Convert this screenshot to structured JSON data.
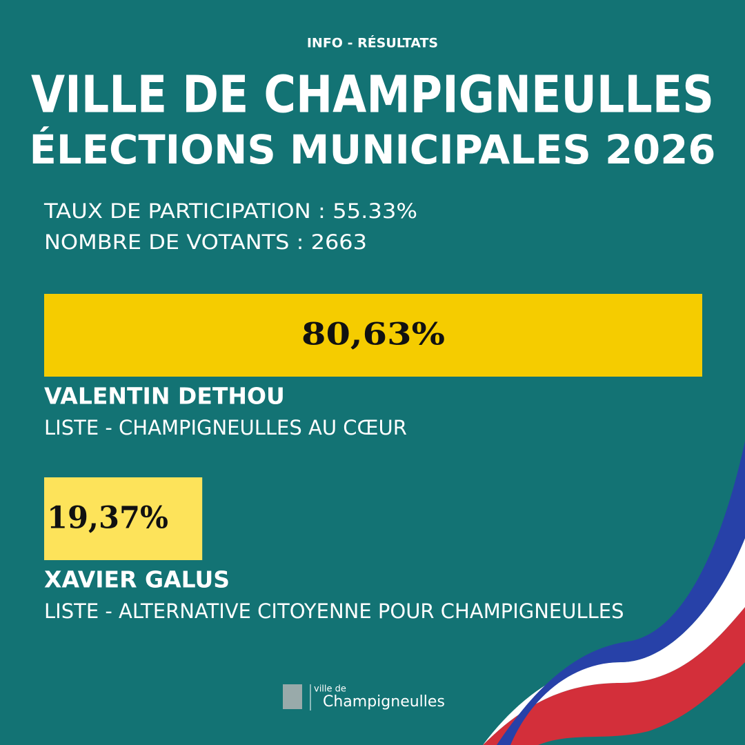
{
  "header": {
    "kicker": "INFO - RÉSULTATS",
    "title": "VILLE DE CHAMPIGNEULLES",
    "subtitle": "ÉLECTIONS MUNICIPALES 2026"
  },
  "stats": [
    "TAUX DE PARTICIPATION : 55.33%",
    "NOMBRE DE VOTANTS : 2663"
  ],
  "chart_data": {
    "type": "bar",
    "orientation": "horizontal",
    "categories": [
      "VALENTIN DETHOU",
      "XAVIER GALUS"
    ],
    "lists": [
      "LISTE - CHAMPIGNEULLES AU CŒUR",
      "LISTE - ALTERNATIVE CITOYENNE POUR CHAMPIGNEULLES"
    ],
    "values": [
      80.63,
      19.37
    ],
    "value_labels": [
      "80,63%",
      "19,37%"
    ],
    "colors": [
      "#f5cc00",
      "#fde35a"
    ]
  },
  "footer": {
    "logo_small": "ville de",
    "logo_name": "Champigneulles"
  }
}
